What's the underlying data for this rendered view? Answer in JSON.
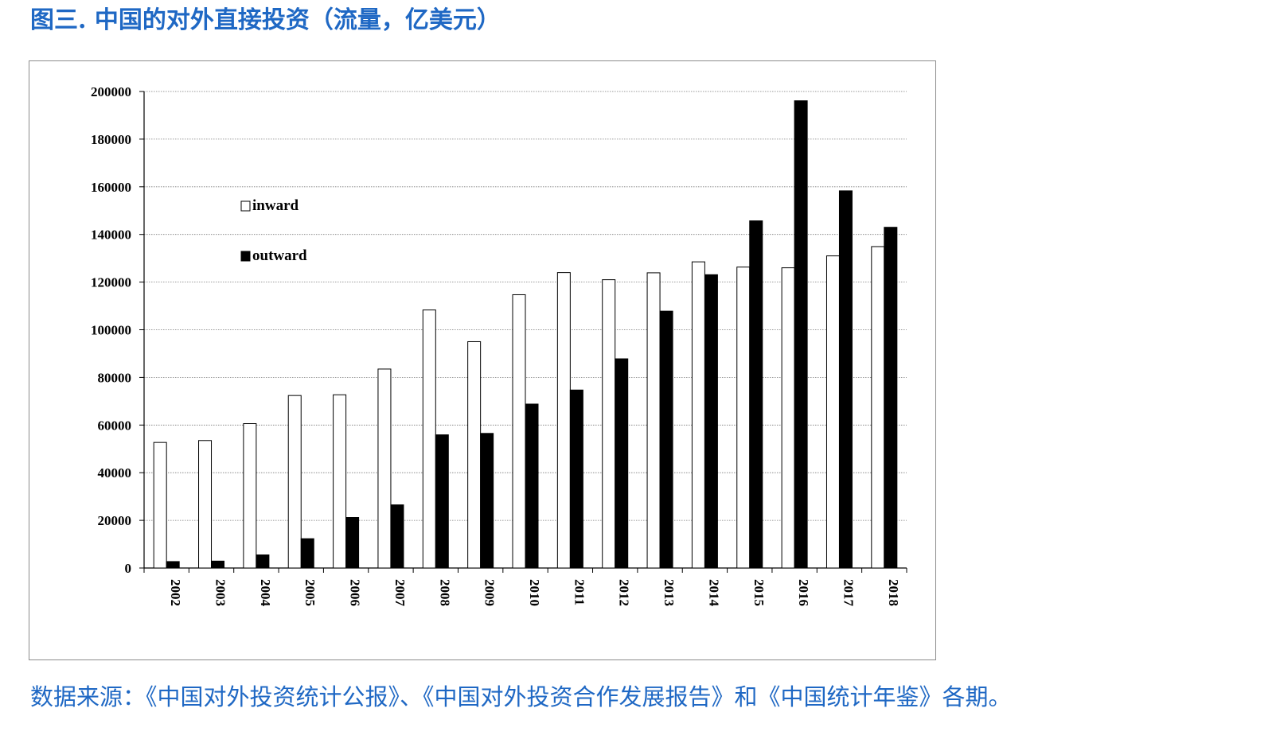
{
  "title": "图三. 中国的对外直接投资（流量，亿美元）",
  "source": "数据来源：《中国对外投资统计公报》、《中国对外投资合作发展报告》和《中国统计年鉴》各期。",
  "colors": {
    "accent": "#1f68c4",
    "inward_fill": "#ffffff",
    "outward_fill": "#000000",
    "stroke": "#000000",
    "grid": "#7a7a7a"
  },
  "chart_data": {
    "type": "bar",
    "title": "",
    "xlabel": "",
    "ylabel": "",
    "ylim": [
      0,
      200000
    ],
    "yticks": [
      "200000",
      "180000",
      "160000",
      "140000",
      "120000",
      "100000",
      "80000",
      "60000",
      "40000",
      "20000",
      "0"
    ],
    "categories": [
      "2002",
      "2003",
      "2004",
      "2005",
      "2006",
      "2007",
      "2008",
      "2009",
      "2010",
      "2011",
      "2012",
      "2013",
      "2014",
      "2015",
      "2016",
      "2017",
      "2018"
    ],
    "series": [
      {
        "name": "inward",
        "values": [
          52700,
          53500,
          60600,
          72400,
          72700,
          83500,
          108300,
          95000,
          114700,
          124000,
          121000,
          123900,
          128500,
          126300,
          126000,
          131000,
          134900
        ]
      },
      {
        "name": "outward",
        "values": [
          2700,
          2900,
          5500,
          12300,
          21200,
          26500,
          55900,
          56500,
          68800,
          74700,
          87800,
          107800,
          123100,
          145700,
          196100,
          158300,
          143000
        ]
      }
    ],
    "legend": [
      "inward",
      "outward"
    ],
    "legend_position": "upper-left inside",
    "grid": true
  }
}
